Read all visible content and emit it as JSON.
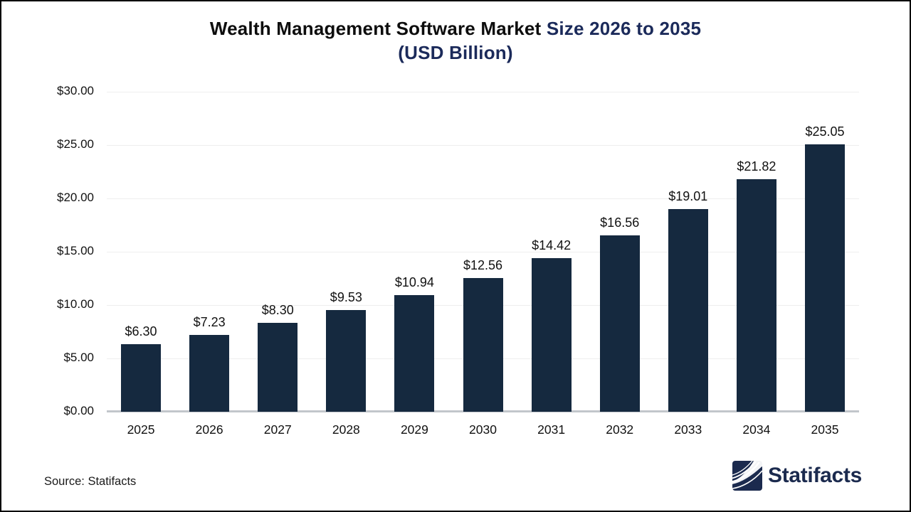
{
  "title": {
    "part1": "Wealth Management Software Market",
    "part2": " Size 2026 to 2035",
    "line2": "(USD Billion)"
  },
  "source": {
    "label": "Source: Statifacts"
  },
  "brand": {
    "name": "Statifacts",
    "logo_icon": "wave-pages-icon"
  },
  "colors": {
    "bar": "#15293f",
    "title_primary": "#0d0d0d",
    "title_accent": "#1b2a5a",
    "brand_navy": "#1b2a4e",
    "gridline": "#eeeeee",
    "axis_line": "#c2c6cb",
    "label_text": "#111111"
  },
  "chart_data": {
    "type": "bar",
    "title": "Wealth Management Software Market Size 2026 to 2035 (USD Billion)",
    "categories": [
      "2025",
      "2026",
      "2027",
      "2028",
      "2029",
      "2030",
      "2031",
      "2032",
      "2033",
      "2034",
      "2035"
    ],
    "values": [
      6.3,
      7.23,
      8.3,
      9.53,
      10.94,
      12.56,
      14.42,
      16.56,
      19.01,
      21.82,
      25.05
    ],
    "bar_labels": [
      "$6.30",
      "$7.23",
      "$8.30",
      "$9.53",
      "$10.94",
      "$12.56",
      "$14.42",
      "$16.56",
      "$19.01",
      "$21.82",
      "$25.05"
    ],
    "xlabel": "",
    "ylabel": "",
    "ylim": [
      0,
      30
    ],
    "ytick_labels": [
      "$30.00",
      "$25.00",
      "$20.00",
      "$15.00",
      "$10.00",
      "$5.00",
      "$0.00"
    ],
    "ytick_values": [
      30,
      25,
      20,
      15,
      10,
      5,
      0
    ],
    "grid": true,
    "legend": false
  }
}
